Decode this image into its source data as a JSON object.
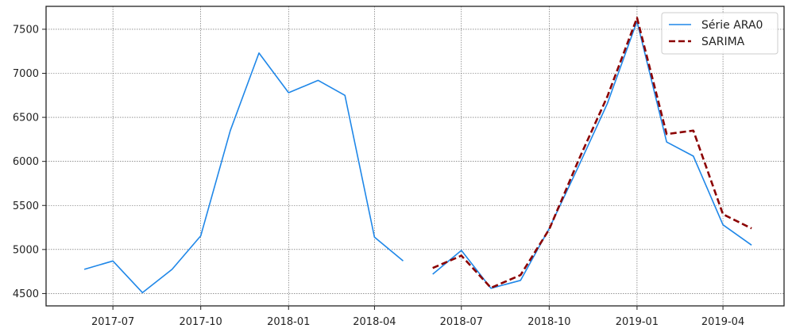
{
  "chart_data": {
    "type": "line",
    "title": "",
    "xlabel": "",
    "ylabel": "",
    "x_ticks": [
      "2017-07",
      "2017-10",
      "2018-01",
      "2018-04",
      "2018-07",
      "2018-10",
      "2019-01",
      "2019-04"
    ],
    "y_ticks": [
      4500,
      5000,
      5500,
      6000,
      6500,
      7000,
      7500
    ],
    "xlim": [
      "2017-04-22",
      "2019-06-04"
    ],
    "ylim": [
      4360,
      7760
    ],
    "grid": true,
    "legend_position": "top-right",
    "series": [
      {
        "name": "Série ARA0",
        "color": "#1f87e8",
        "style": "solid",
        "segments": [
          {
            "x": [
              "2017-06-01",
              "2017-07-01",
              "2017-08-01",
              "2017-09-01",
              "2017-10-01",
              "2017-11-01",
              "2017-12-01",
              "2018-01-01",
              "2018-02-01",
              "2018-03-01",
              "2018-04-01",
              "2018-05-01"
            ],
            "y": [
              4775,
              4870,
              4510,
              4775,
              5155,
              6350,
              7230,
              6780,
              6920,
              6750,
              5140,
              4870
            ]
          },
          {
            "x": [
              "2018-06-01",
              "2018-07-01",
              "2018-08-01",
              "2018-09-01",
              "2018-10-01",
              "2018-11-01",
              "2018-12-01",
              "2019-01-01",
              "2019-02-01",
              "2019-03-01",
              "2019-04-01",
              "2019-05-01"
            ],
            "y": [
              4720,
              4990,
              4560,
              4650,
              5240,
              5950,
              6660,
              7590,
              6220,
              6060,
              5280,
              5050
            ]
          }
        ]
      },
      {
        "name": "SARIMA",
        "color": "#8b0000",
        "style": "dashed",
        "segments": [
          {
            "x": [
              "2018-06-01",
              "2018-07-01",
              "2018-08-01",
              "2018-09-01",
              "2018-10-01",
              "2018-11-01",
              "2018-12-01",
              "2019-01-01",
              "2019-02-01",
              "2019-03-01",
              "2019-04-01",
              "2019-05-01"
            ],
            "y": [
              4790,
              4930,
              4565,
              4710,
              5230,
              6020,
              6740,
              7630,
              6310,
              6350,
              5400,
              5240
            ]
          }
        ]
      }
    ]
  }
}
